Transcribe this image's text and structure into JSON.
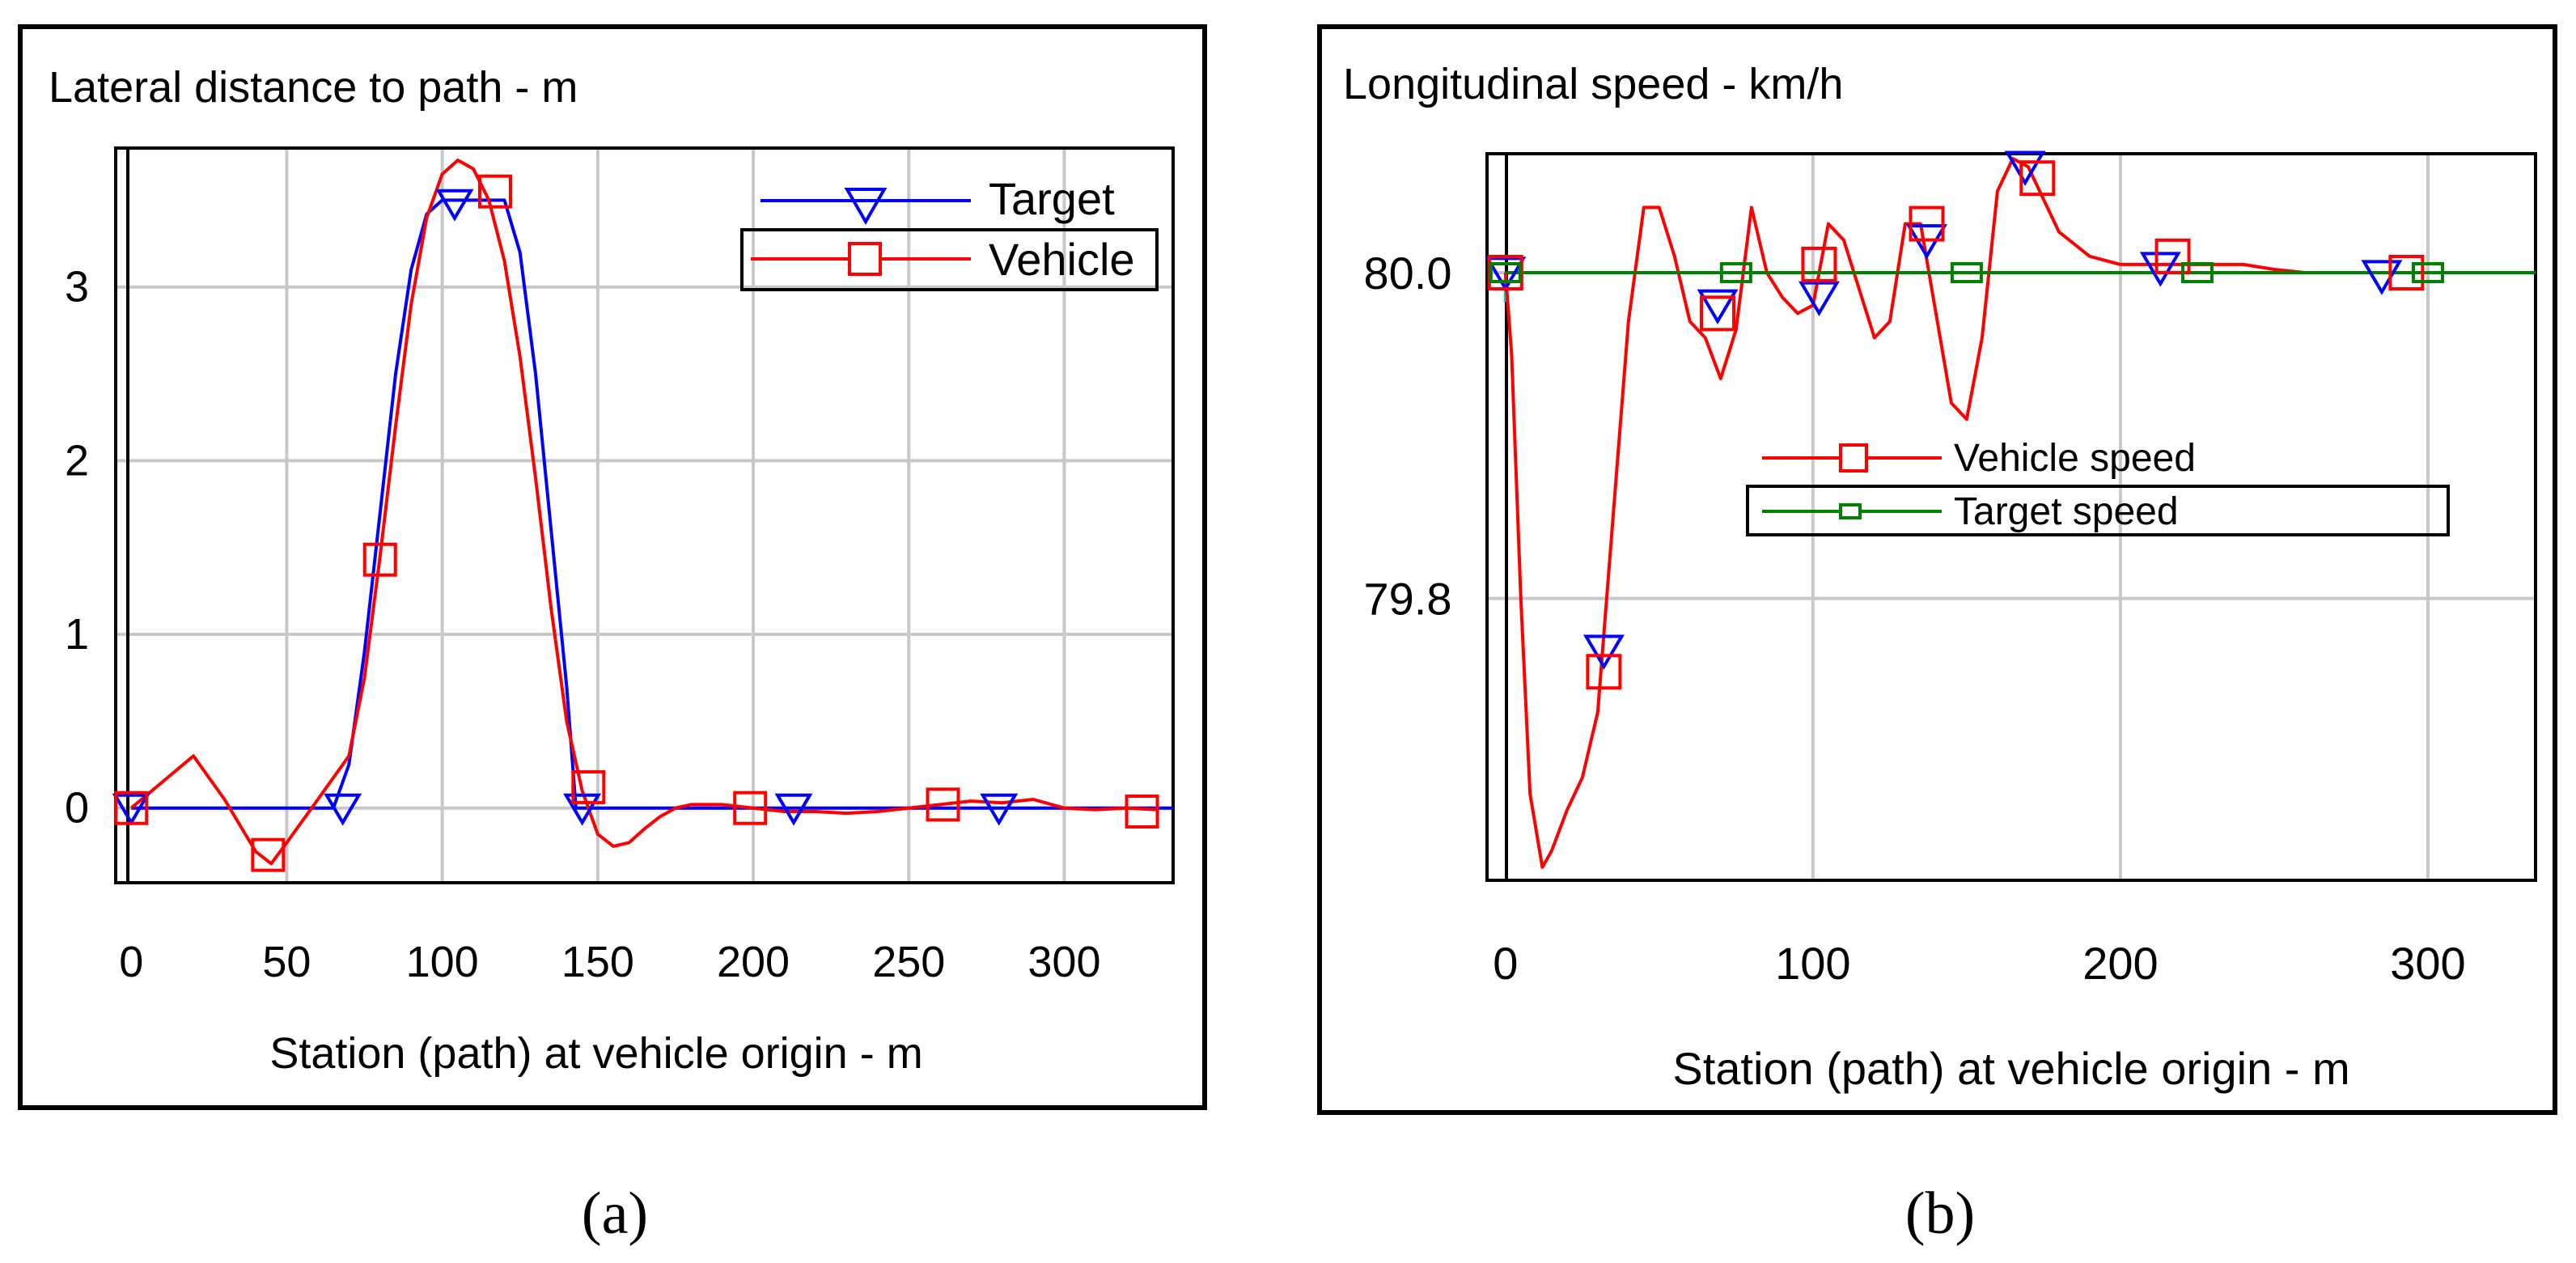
{
  "panel_labels": [
    "(a)",
    "(b)"
  ],
  "chart_data": [
    {
      "type": "line",
      "title": "Lateral distance to path - m",
      "xlabel": "Station (path) at vehicle origin - m",
      "ylabel": "",
      "xlim": [
        -5,
        335
      ],
      "ylim": [
        -0.43,
        3.8
      ],
      "xticks": [
        0,
        50,
        100,
        150,
        200,
        250,
        300
      ],
      "yticks": [
        0,
        1,
        2,
        3
      ],
      "grid": true,
      "legend_position": "top-right",
      "colors": {
        "Target": "#0000ff",
        "Vehicle": "#ff0000"
      },
      "series": [
        {
          "name": "Target",
          "marker": "triangle-down",
          "x": [
            0,
            65,
            70,
            75,
            80,
            85,
            90,
            95,
            100,
            120,
            125,
            130,
            135,
            140,
            143,
            335
          ],
          "y": [
            0,
            0,
            0.25,
            0.9,
            1.7,
            2.5,
            3.1,
            3.42,
            3.5,
            3.5,
            3.2,
            2.5,
            1.6,
            0.7,
            0,
            0
          ],
          "marker_x": [
            0,
            68,
            104,
            145,
            213,
            279
          ],
          "marker_y": [
            0,
            0,
            3.48,
            0,
            0,
            0
          ]
        },
        {
          "name": "Vehicle",
          "marker": "square",
          "x": [
            0,
            10,
            20,
            30,
            40,
            45,
            50,
            60,
            70,
            75,
            80,
            85,
            90,
            95,
            100,
            105,
            110,
            115,
            120,
            125,
            130,
            135,
            140,
            145,
            150,
            155,
            160,
            165,
            170,
            175,
            180,
            190,
            200,
            210,
            220,
            230,
            240,
            250,
            260,
            270,
            280,
            290,
            300,
            310,
            320,
            330
          ],
          "y": [
            0,
            0.15,
            0.3,
            0.05,
            -0.25,
            -0.32,
            -0.2,
            0.05,
            0.3,
            0.75,
            1.45,
            2.2,
            2.9,
            3.4,
            3.65,
            3.73,
            3.68,
            3.5,
            3.15,
            2.6,
            1.9,
            1.15,
            0.5,
            0.1,
            -0.15,
            -0.22,
            -0.2,
            -0.12,
            -0.05,
            0.0,
            0.02,
            0.02,
            0.0,
            -0.02,
            -0.02,
            -0.03,
            -0.02,
            0.0,
            0.02,
            0.04,
            0.03,
            0.05,
            0.0,
            -0.01,
            0.0,
            -0.01
          ],
          "marker_x": [
            0,
            44,
            80,
            117,
            147,
            199,
            261,
            325
          ],
          "marker_y": [
            0,
            -0.27,
            1.43,
            3.55,
            0.12,
            0.0,
            0.02,
            -0.02
          ]
        }
      ]
    },
    {
      "type": "line",
      "title": "Longitudinal speed - km/h",
      "xlabel": "Station (path) at vehicle origin - m",
      "ylabel": "",
      "xlim": [
        -6,
        335
      ],
      "ylim": [
        79.627,
        80.073
      ],
      "xticks": [
        0,
        100,
        200,
        300
      ],
      "yticks": [
        79.8,
        80.0
      ],
      "ytick_labels": [
        "79.8",
        "80.0"
      ],
      "grid": true,
      "legend_position": "center-right",
      "colors": {
        "Vehicle speed": "#ff0000",
        "Target speed": "#008000"
      },
      "series": [
        {
          "name": "Vehicle speed",
          "marker": "square",
          "x": [
            0,
            2,
            5,
            8,
            12,
            15,
            20,
            25,
            30,
            35,
            40,
            45,
            50,
            55,
            60,
            65,
            70,
            75,
            80,
            85,
            90,
            95,
            100,
            105,
            110,
            115,
            120,
            125,
            130,
            135,
            140,
            145,
            150,
            155,
            160,
            165,
            170,
            175,
            180,
            190,
            200,
            210,
            220,
            230,
            240,
            250,
            260,
            280,
            300,
            335
          ],
          "y": [
            80.0,
            79.95,
            79.8,
            79.68,
            79.635,
            79.645,
            79.67,
            79.69,
            79.73,
            79.85,
            79.97,
            80.04,
            80.04,
            80.01,
            79.97,
            79.96,
            79.935,
            79.965,
            80.04,
            80.0,
            79.985,
            79.975,
            79.98,
            80.03,
            80.02,
            79.99,
            79.96,
            79.97,
            80.03,
            80.03,
            79.975,
            79.92,
            79.91,
            79.96,
            80.05,
            80.07,
            80.065,
            80.045,
            80.025,
            80.01,
            80.005,
            80.005,
            80.005,
            80.005,
            80.005,
            80.002,
            80.0,
            80.0,
            80.0,
            80.0
          ],
          "marker_x": [
            0,
            32,
            69,
            102,
            137,
            173,
            217,
            293
          ],
          "marker_y": [
            80.0,
            79.755,
            79.975,
            80.005,
            80.03,
            80.058,
            80.01,
            80.0
          ],
          "target_marker": "triangle-down",
          "target_marker_x": [
            0,
            32,
            69,
            102,
            137,
            169,
            213,
            285
          ],
          "target_marker_y": [
            80.0,
            79.768,
            79.98,
            79.985,
            80.02,
            80.065,
            80.003,
            79.998
          ]
        },
        {
          "name": "Target speed",
          "marker": "square",
          "x": [
            0,
            335
          ],
          "y": [
            80.0,
            80.0
          ],
          "marker_x": [
            0,
            75,
            150,
            225,
            300
          ],
          "marker_y": [
            80.0,
            80.0,
            80.0,
            80.0,
            80.0
          ]
        }
      ]
    }
  ]
}
